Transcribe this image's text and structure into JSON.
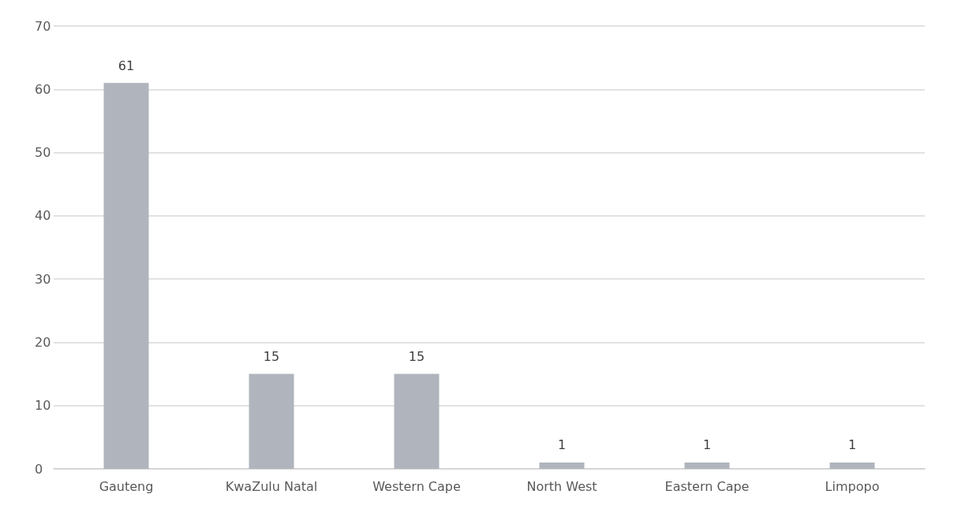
{
  "chart_data": {
    "type": "bar",
    "categories": [
      "Gauteng",
      "KwaZulu Natal",
      "Western Cape",
      "North West",
      "Eastern Cape",
      "Limpopo"
    ],
    "values": [
      61,
      15,
      15,
      1,
      1,
      1
    ],
    "color": "#b0b5bd",
    "ylim": [
      0,
      70
    ],
    "yticks": [
      0,
      10,
      20,
      30,
      40,
      50,
      60,
      70
    ],
    "grid": "y",
    "data_labels": true
  }
}
